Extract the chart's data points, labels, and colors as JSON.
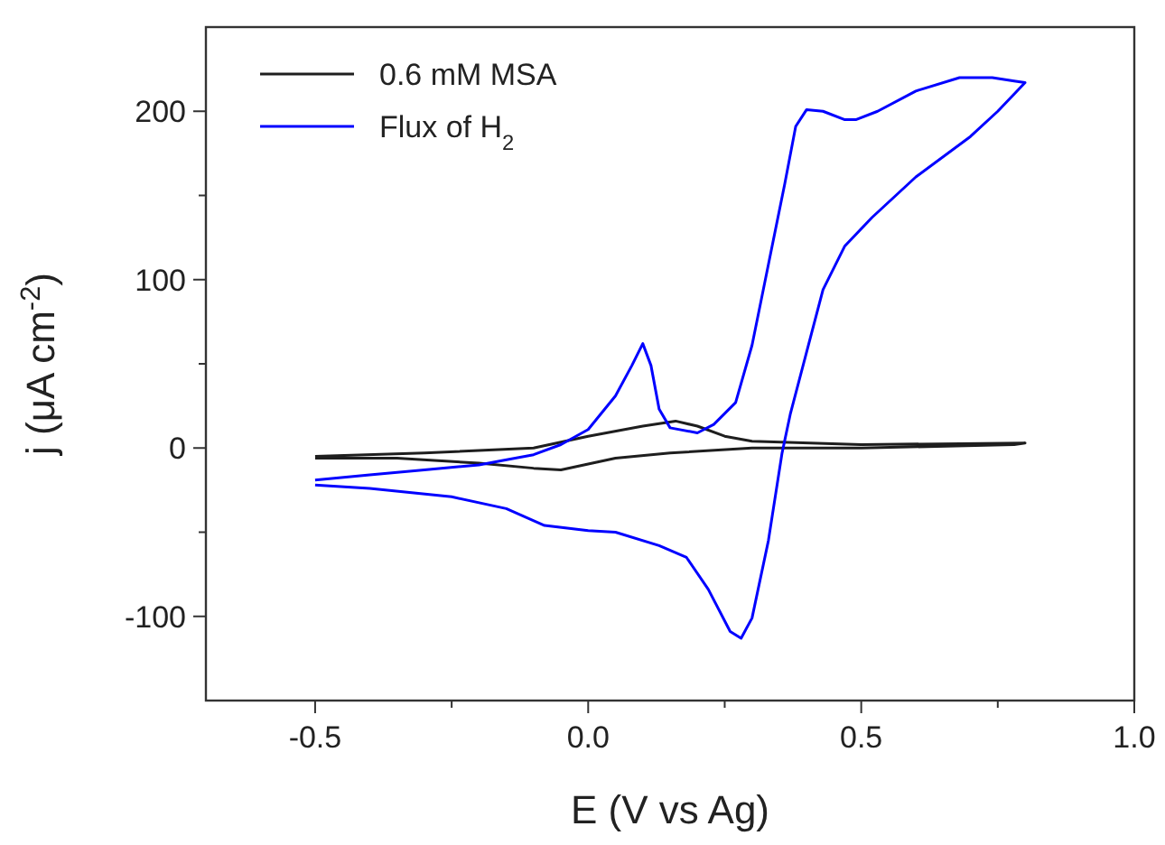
{
  "chart_data": {
    "type": "line",
    "xlabel": "E (V vs Ag)",
    "ylabel": "j (μA cm$^{-2}$)",
    "xlim": [
      -0.7,
      1.0
    ],
    "ylim": [
      -150,
      250
    ],
    "xticks": [
      -0.5,
      {
        "value": -0.25,
        "label": null
      },
      {
        "value": 0,
        "label": "0.0"
      },
      {
        "value": 0.25,
        "label": null
      },
      0.5,
      {
        "value": 0.75,
        "label": null
      },
      {
        "value": 1,
        "label": "1.0"
      }
    ],
    "yticks": [
      -100,
      {
        "value": -50,
        "label": null
      },
      0,
      {
        "value": 50,
        "label": null
      },
      100,
      {
        "value": 150,
        "label": null
      },
      200
    ],
    "grid": false,
    "legend": "top left",
    "marker": "none",
    "line_style": "solid",
    "series": [
      {
        "name": "0.6 mM MSA",
        "color": "#1e1e1e",
        "x": [
          -0.5,
          -0.3,
          -0.1,
          0.0,
          0.1,
          0.16,
          0.2,
          0.25,
          0.3,
          0.5,
          0.8,
          0.78,
          0.5,
          0.3,
          0.15,
          0.05,
          -0.05,
          -0.1,
          -0.2,
          -0.35,
          -0.5
        ],
        "values": [
          -5,
          -3,
          0,
          7,
          13,
          16,
          13,
          7,
          4,
          2,
          3,
          2,
          0,
          0,
          -3,
          -6,
          -13,
          -12,
          -9,
          -6,
          -6
        ]
      },
      {
        "name": "Flux of H$_{2}$",
        "color": "#0000ff",
        "x": [
          -0.5,
          -0.4,
          -0.3,
          -0.2,
          -0.1,
          -0.05,
          0.0,
          0.05,
          0.08,
          0.1,
          0.115,
          0.13,
          0.15,
          0.2,
          0.23,
          0.27,
          0.3,
          0.33,
          0.36,
          0.38,
          0.4,
          0.43,
          0.47,
          0.49,
          0.53,
          0.6,
          0.68,
          0.74,
          0.78,
          0.8,
          0.75,
          0.7,
          0.6,
          0.52,
          0.47,
          0.43,
          0.4,
          0.37,
          0.355,
          0.33,
          0.3,
          0.28,
          0.26,
          0.22,
          0.18,
          0.13,
          0.05,
          0.0,
          -0.08,
          -0.15,
          -0.25,
          -0.4,
          -0.5
        ],
        "values": [
          -19,
          -16,
          -13,
          -10,
          -4,
          2,
          11,
          31,
          49,
          62,
          49,
          23,
          12,
          9,
          14,
          27,
          61,
          109,
          157,
          191,
          201,
          200,
          195,
          195,
          200,
          212,
          220,
          220,
          218,
          217,
          200,
          185,
          161,
          137,
          120,
          94,
          57,
          20,
          -3,
          -55,
          -101,
          -113,
          -109,
          -84,
          -65,
          -58,
          -50,
          -49,
          -46,
          -36,
          -29,
          -24,
          -22
        ]
      }
    ]
  }
}
